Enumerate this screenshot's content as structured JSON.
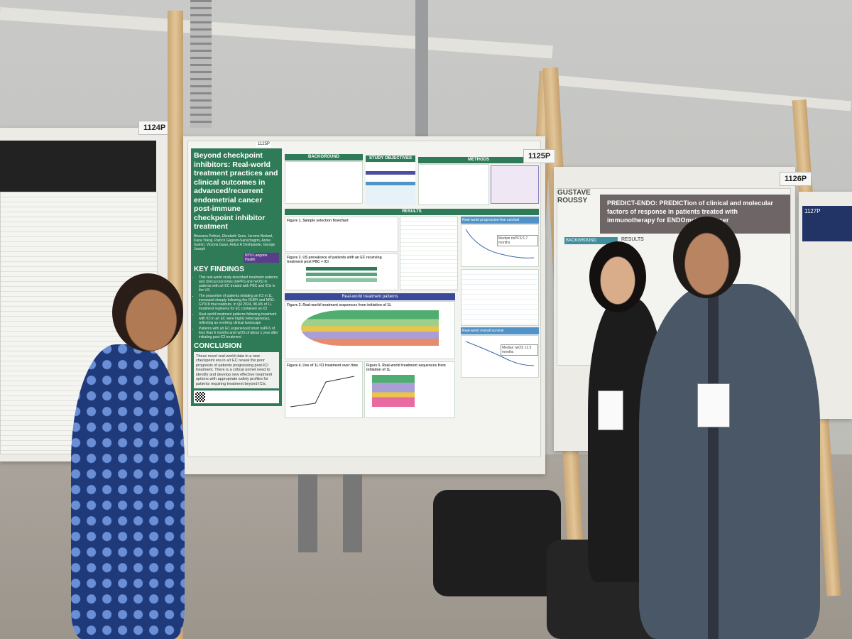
{
  "scene": {
    "description_colors": {
      "poster_green": "#2f7b58",
      "wall": "#c9cac8",
      "wood": "#d9b887",
      "dress": "#1f3a7a",
      "suit": "#4a5766"
    }
  },
  "board_labels": [
    "1124P",
    "1125P",
    "1126P"
  ],
  "center_poster": {
    "number": "1125P",
    "title": "Beyond checkpoint inhibitors: Real-world treatment practices and clinical outcomes in advanced/recurrent endometrial cancer post-immune checkpoint inhibitor treatment",
    "authors": "Bhavana Pothuri, Elizabeth Sens, Jerome Bedard, Kana Yokoji, Patrick Gagnon-Sanschagrin, Annie Guérin, Victoria Guan, Ankur A Deshpande, George Joseph",
    "logo_text": "NYU Langone Health",
    "key_findings_heading": "KEY FINDINGS",
    "key_findings": [
      "This real-world study described treatment patterns and clinical outcomes (rwPFS and rwOS) in patients with a/r EC treated with PBC and ICIs in the US",
      "The proportion of patients initiating an ICI in 1L increased sharply following the RUBY and NRG-GY018 trial readouts. In Q4 2024, 98.4% of 1L treatment regimens for EC contained an ICI",
      "Real-world treatment patterns following treatment with ICI in a/r EC were highly heterogeneous, reflecting an evolving clinical landscape",
      "Patients with a/r EC experienced short rwPFS of less than 6 months and rwOS of about 1 year after initiating post-ICI treatment"
    ],
    "conclusion_heading": "CONCLUSION",
    "conclusion": "These novel real-world data in a new checkpoint era in a/r EC reveal the poor prognosis of patients progressing post-ICI treatment. There is a critical unmet need to identify and develop new effective treatment options with appropriate safety profiles for patients requiring treatment beyond ICIs.",
    "sections": [
      "BACKGROUND",
      "STUDY OBJECTIVES",
      "METHODS",
      "RESULTS"
    ],
    "figures": [
      "Figure 1. Sample selection flowchart",
      "Figure 2. US prevalence of patients with an EC receiving treatment post PBC + ICI",
      "Real-world treatment patterns",
      "Figure 3. Real-world treatment sequences from initiation of 1L",
      "Figure 4. Use of 1L ICI treatment over time",
      "Figure 5. Real-world treatment sequences from initiation of 1L",
      "Real-world progression-free survival",
      "Real-world overall survival"
    ],
    "median_rwpfs": "Median rwPFS 5.7 months",
    "median_rwos": "Median rwOS 12.5 months"
  },
  "right_poster": {
    "title": "PREDICT-ENDO: PREDICTion of clinical and molecular factors of response in patients treated with immunotherapy for ENDOmetrial cancer",
    "logo": "GUSTAVE ROUSSY",
    "sections": [
      "BACKGROUND",
      "RESULTS"
    ],
    "number": "1126P"
  },
  "far_right_poster": {
    "number": "1127P"
  }
}
